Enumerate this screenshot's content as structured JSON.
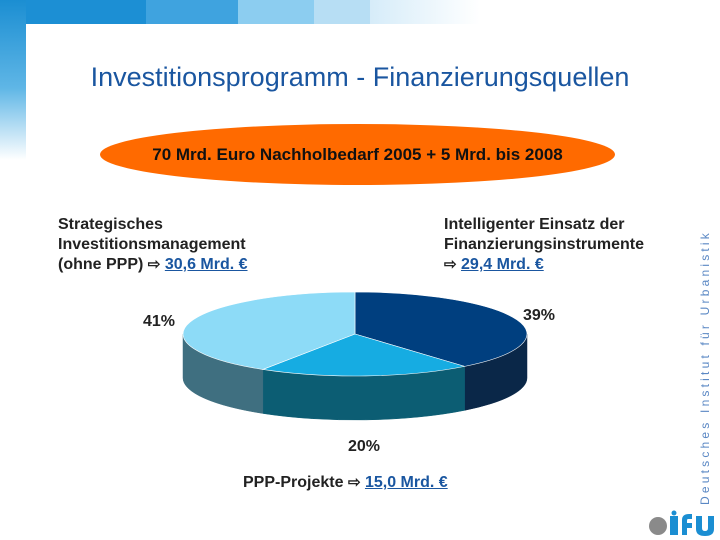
{
  "slide": {
    "title": "Investitionsprogramm - Finanzierungsquellen",
    "banner": "70 Mrd. Euro Nachholbedarf 2005 + 5 Mrd. bis 2008",
    "left_block": {
      "line1": "Strategisches",
      "line2": "Investitionsmanagement",
      "line3": "(ohne PPP)",
      "arrow": "⇨",
      "amount": "30,6 Mrd. €"
    },
    "right_block": {
      "line1": "Intelligenter Einsatz der",
      "line2": "Finanzierungsinstrumente",
      "arrow": "⇨",
      "amount": "29,4 Mrd. €"
    },
    "bottom_block": {
      "label": "PPP-Projekte",
      "arrow": "⇨",
      "amount": "15,0 Mrd. €"
    },
    "vertical_text": "Deutsches Institut für Urbanistik",
    "header_colors": [
      "#1c8fd4",
      "#3fa3df",
      "#8ccdf0",
      "#b7def4"
    ]
  },
  "chart_data": {
    "type": "pie",
    "style": "3d",
    "slices": [
      {
        "value": 39,
        "label": "39%",
        "color": "#003f7f",
        "side_color": "#0a2748"
      },
      {
        "value": 20,
        "label": "20%",
        "color": "#16ace2",
        "side_color": "#0c5d73"
      },
      {
        "value": 41,
        "label": "41%",
        "color": "#8ddbf7",
        "side_color": "#3f6f80"
      }
    ]
  }
}
